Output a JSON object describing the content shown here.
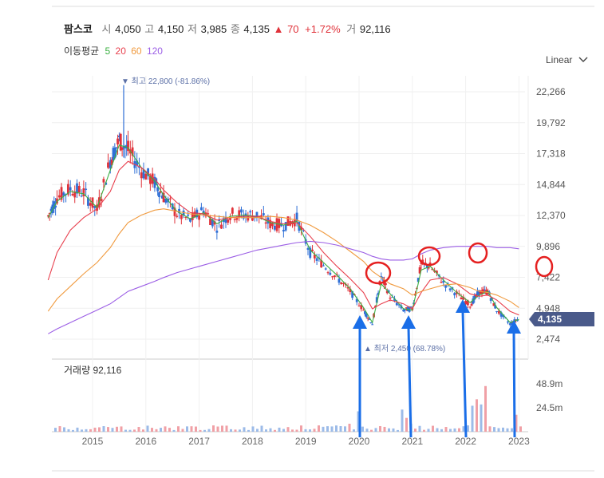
{
  "header": {
    "name": "팜스코",
    "open_label": "시",
    "open": "4,050",
    "high_label": "고",
    "high": "4,150",
    "low_label": "저",
    "low": "3,985",
    "close_label": "종",
    "close": "4,135",
    "change_arrow": "▲",
    "change": "70",
    "change_pct": "+1.72%",
    "volume_label": "거",
    "volume": "92,116"
  },
  "ma_legend": {
    "label": "이동평균",
    "periods": [
      "5",
      "20",
      "60",
      "120"
    ],
    "colors": [
      "#3cb043",
      "#e8404e",
      "#f09a3e",
      "#9b5de5"
    ]
  },
  "scale_toggle": "Linear",
  "annotations": {
    "max": "▼ 최고 22,800 (-81.86%)",
    "min": "▲ 최저 2,450 (68.78%)",
    "last_price": "4,135"
  },
  "volume_panel": {
    "title": "거래량 92,116",
    "ticks": [
      "48.9m",
      "24.5m"
    ]
  },
  "chart_data": {
    "type": "line",
    "title": "팜스코",
    "y_ticks": [
      22266,
      19792,
      17318,
      14844,
      12370,
      9896,
      7422,
      4948,
      2474
    ],
    "y_tick_labels": [
      "22,266",
      "19,792",
      "17,318",
      "14,844",
      "12,370",
      "9,896",
      "7,422",
      "4,948",
      "2,474"
    ],
    "x_ticks": [
      "2015",
      "2016",
      "2017",
      "2018",
      "2019",
      "2020",
      "2021",
      "2022",
      "2023"
    ],
    "ylim": [
      1900,
      24500
    ],
    "x": [
      "2014-03",
      "2014-05",
      "2014-08",
      "2014-11",
      "2015-02",
      "2015-05",
      "2015-07",
      "2015-09",
      "2015-12",
      "2016-03",
      "2016-05",
      "2016-08",
      "2016-11",
      "2017-02",
      "2017-05",
      "2017-08",
      "2017-11",
      "2018-02",
      "2018-05",
      "2018-08",
      "2018-11",
      "2019-02",
      "2019-05",
      "2019-08",
      "2019-11",
      "2020-02",
      "2020-04",
      "2020-06",
      "2020-08",
      "2020-11",
      "2021-01",
      "2021-03",
      "2021-05",
      "2021-08",
      "2021-11",
      "2022-02",
      "2022-04",
      "2022-06",
      "2022-08",
      "2022-11",
      "2023-01"
    ],
    "series": [
      {
        "name": "종가",
        "color": "#333333",
        "values": [
          12300,
          13800,
          14500,
          14200,
          12800,
          16800,
          18400,
          17600,
          16000,
          15000,
          13900,
          12500,
          12000,
          12800,
          11500,
          12500,
          12400,
          12400,
          11700,
          11600,
          12100,
          9400,
          8400,
          7400,
          6300,
          4800,
          3700,
          7500,
          5900,
          4800,
          4900,
          8500,
          8300,
          7000,
          6100,
          5200,
          6200,
          6300,
          4800,
          3700,
          4135
        ]
      },
      {
        "name": "5",
        "color": "#3cb043",
        "values": [
          12200,
          13500,
          14300,
          14100,
          13000,
          16000,
          18000,
          17800,
          16200,
          15100,
          14000,
          12700,
          12100,
          12600,
          11700,
          12300,
          12400,
          12300,
          11800,
          11600,
          11900,
          9600,
          8600,
          7600,
          6500,
          5000,
          3800,
          6900,
          6100,
          4900,
          4800,
          8000,
          8300,
          7200,
          6200,
          5400,
          6000,
          6300,
          5000,
          3800,
          4050
        ]
      },
      {
        "name": "20",
        "color": "#e8404e",
        "values": [
          7200,
          9400,
          11200,
          12200,
          12900,
          14300,
          16000,
          16700,
          16200,
          15300,
          14400,
          13400,
          12600,
          12500,
          12000,
          12200,
          12300,
          12300,
          11900,
          11700,
          11800,
          10700,
          9400,
          8300,
          7300,
          6200,
          4900,
          5300,
          5600,
          5300,
          4900,
          6200,
          7200,
          7400,
          6900,
          6100,
          5900,
          6000,
          5600,
          4700,
          4400
        ]
      },
      {
        "name": "60",
        "color": "#f09a3e",
        "values": [
          4700,
          5700,
          6700,
          7700,
          8600,
          9800,
          10900,
          11800,
          12400,
          12800,
          12900,
          12700,
          12500,
          12400,
          12300,
          12200,
          12200,
          12200,
          12300,
          12200,
          12000,
          11600,
          11000,
          10300,
          9500,
          8700,
          7900,
          7400,
          6900,
          6500,
          6000,
          6300,
          6500,
          6800,
          6900,
          6600,
          6300,
          6200,
          6000,
          5500,
          5000
        ]
      },
      {
        "name": "120",
        "color": "#9b5de5",
        "values": [
          2900,
          3300,
          3800,
          4300,
          4800,
          5300,
          5800,
          6300,
          6700,
          7100,
          7400,
          7800,
          8100,
          8400,
          8700,
          9000,
          9300,
          9600,
          9800,
          10000,
          10200,
          10300,
          10200,
          10000,
          9700,
          9400,
          9100,
          8900,
          8800,
          8800,
          8900,
          9300,
          9600,
          9800,
          9900,
          9900,
          9900,
          9900,
          9800,
          9800,
          9700
        ]
      }
    ]
  }
}
